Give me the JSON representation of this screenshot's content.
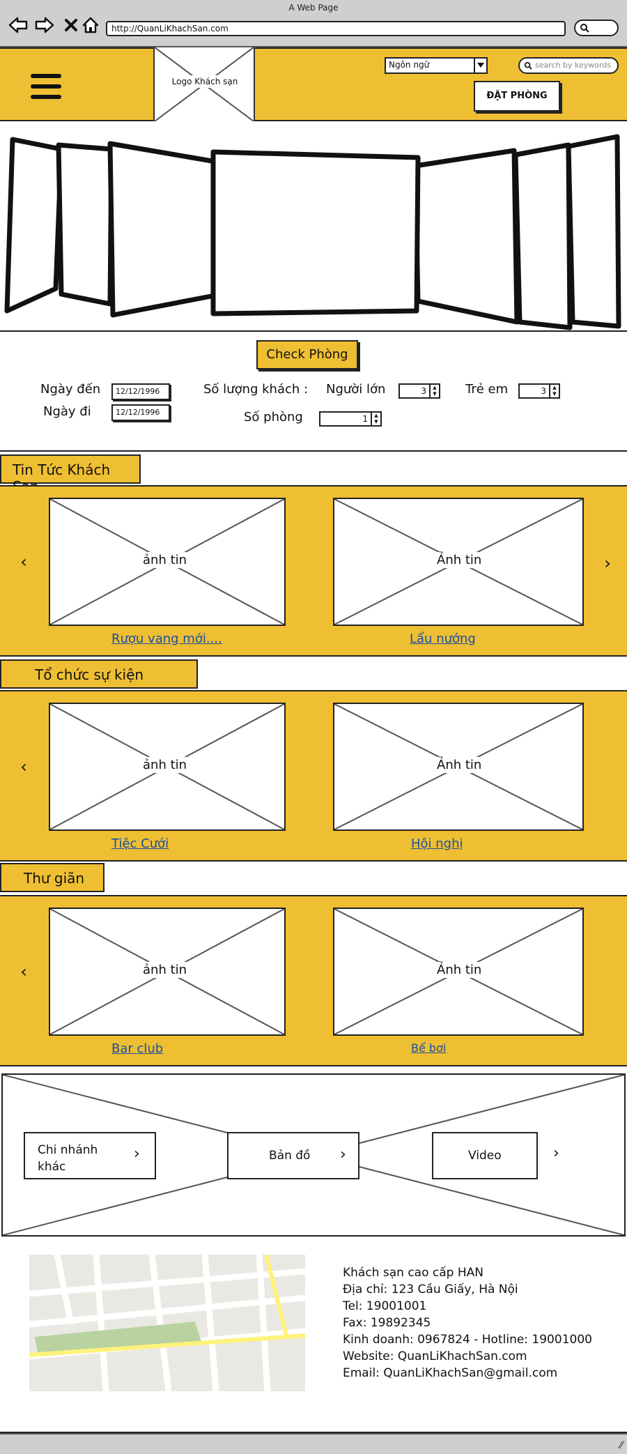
{
  "browser": {
    "window_title": "A Web Page",
    "url": "http://QuanLiKhachSan.com",
    "icons": [
      "back-icon",
      "forward-icon",
      "close-icon",
      "home-icon",
      "search-icon"
    ]
  },
  "header": {
    "logo_label": "Logo Khách sạn",
    "language_value": "Ngôn ngữ",
    "search_placeholder": "search by keywords",
    "book_label": "ĐẶT PHÒNG",
    "accent_color": "#efbf33"
  },
  "booking": {
    "check_button": "Check Phòng",
    "arrival_label": "Ngày đến",
    "arrival_value": "12/12/1996",
    "departure_label": "Ngày đi",
    "departure_value": "12/12/1996",
    "guests_label": "Số lượng khách :",
    "adults_label": "Người lớn",
    "adults_value": "3",
    "children_label": "Trẻ em",
    "children_value": "3",
    "rooms_label": "Số phòng",
    "rooms_value": "1"
  },
  "sections": [
    {
      "title": "Tin Tức Khách Sạn",
      "items": [
        {
          "image_label": "ảnh tin",
          "caption": "Rượu vang mới...."
        },
        {
          "image_label": "Ảnh tin",
          "caption": "Lẩu nướng"
        }
      ]
    },
    {
      "title": "Tổ chức sự kiện",
      "items": [
        {
          "image_label": "ảnh tin",
          "caption": "Tiệc Cưới"
        },
        {
          "image_label": "Ảnh tin",
          "caption": "Hội nghị"
        }
      ]
    },
    {
      "title": "Thư giãn",
      "items": [
        {
          "image_label": "ảnh tin",
          "caption": "Bar club"
        },
        {
          "image_label": "Ảnh tin",
          "caption": "Bể bơi"
        }
      ]
    }
  ],
  "arrows": {
    "prev": "‹",
    "next": "›"
  },
  "links": {
    "branches": "Chi nhánh khác",
    "map": "Bản đồ",
    "video": "Video"
  },
  "footer": {
    "lines": [
      "Khách sạn cao cấp HAN",
      "Địa chỉ: 123 Cầu Giấy, Hà Nội",
      "Tel: 19001001",
      "Fax: 19892345",
      "Kinh doanh: 0967824 - Hotline: 19001000",
      "Website: QuanLiKhachSan.com",
      "Email: QuanLiKhachSan@gmail.com"
    ]
  }
}
